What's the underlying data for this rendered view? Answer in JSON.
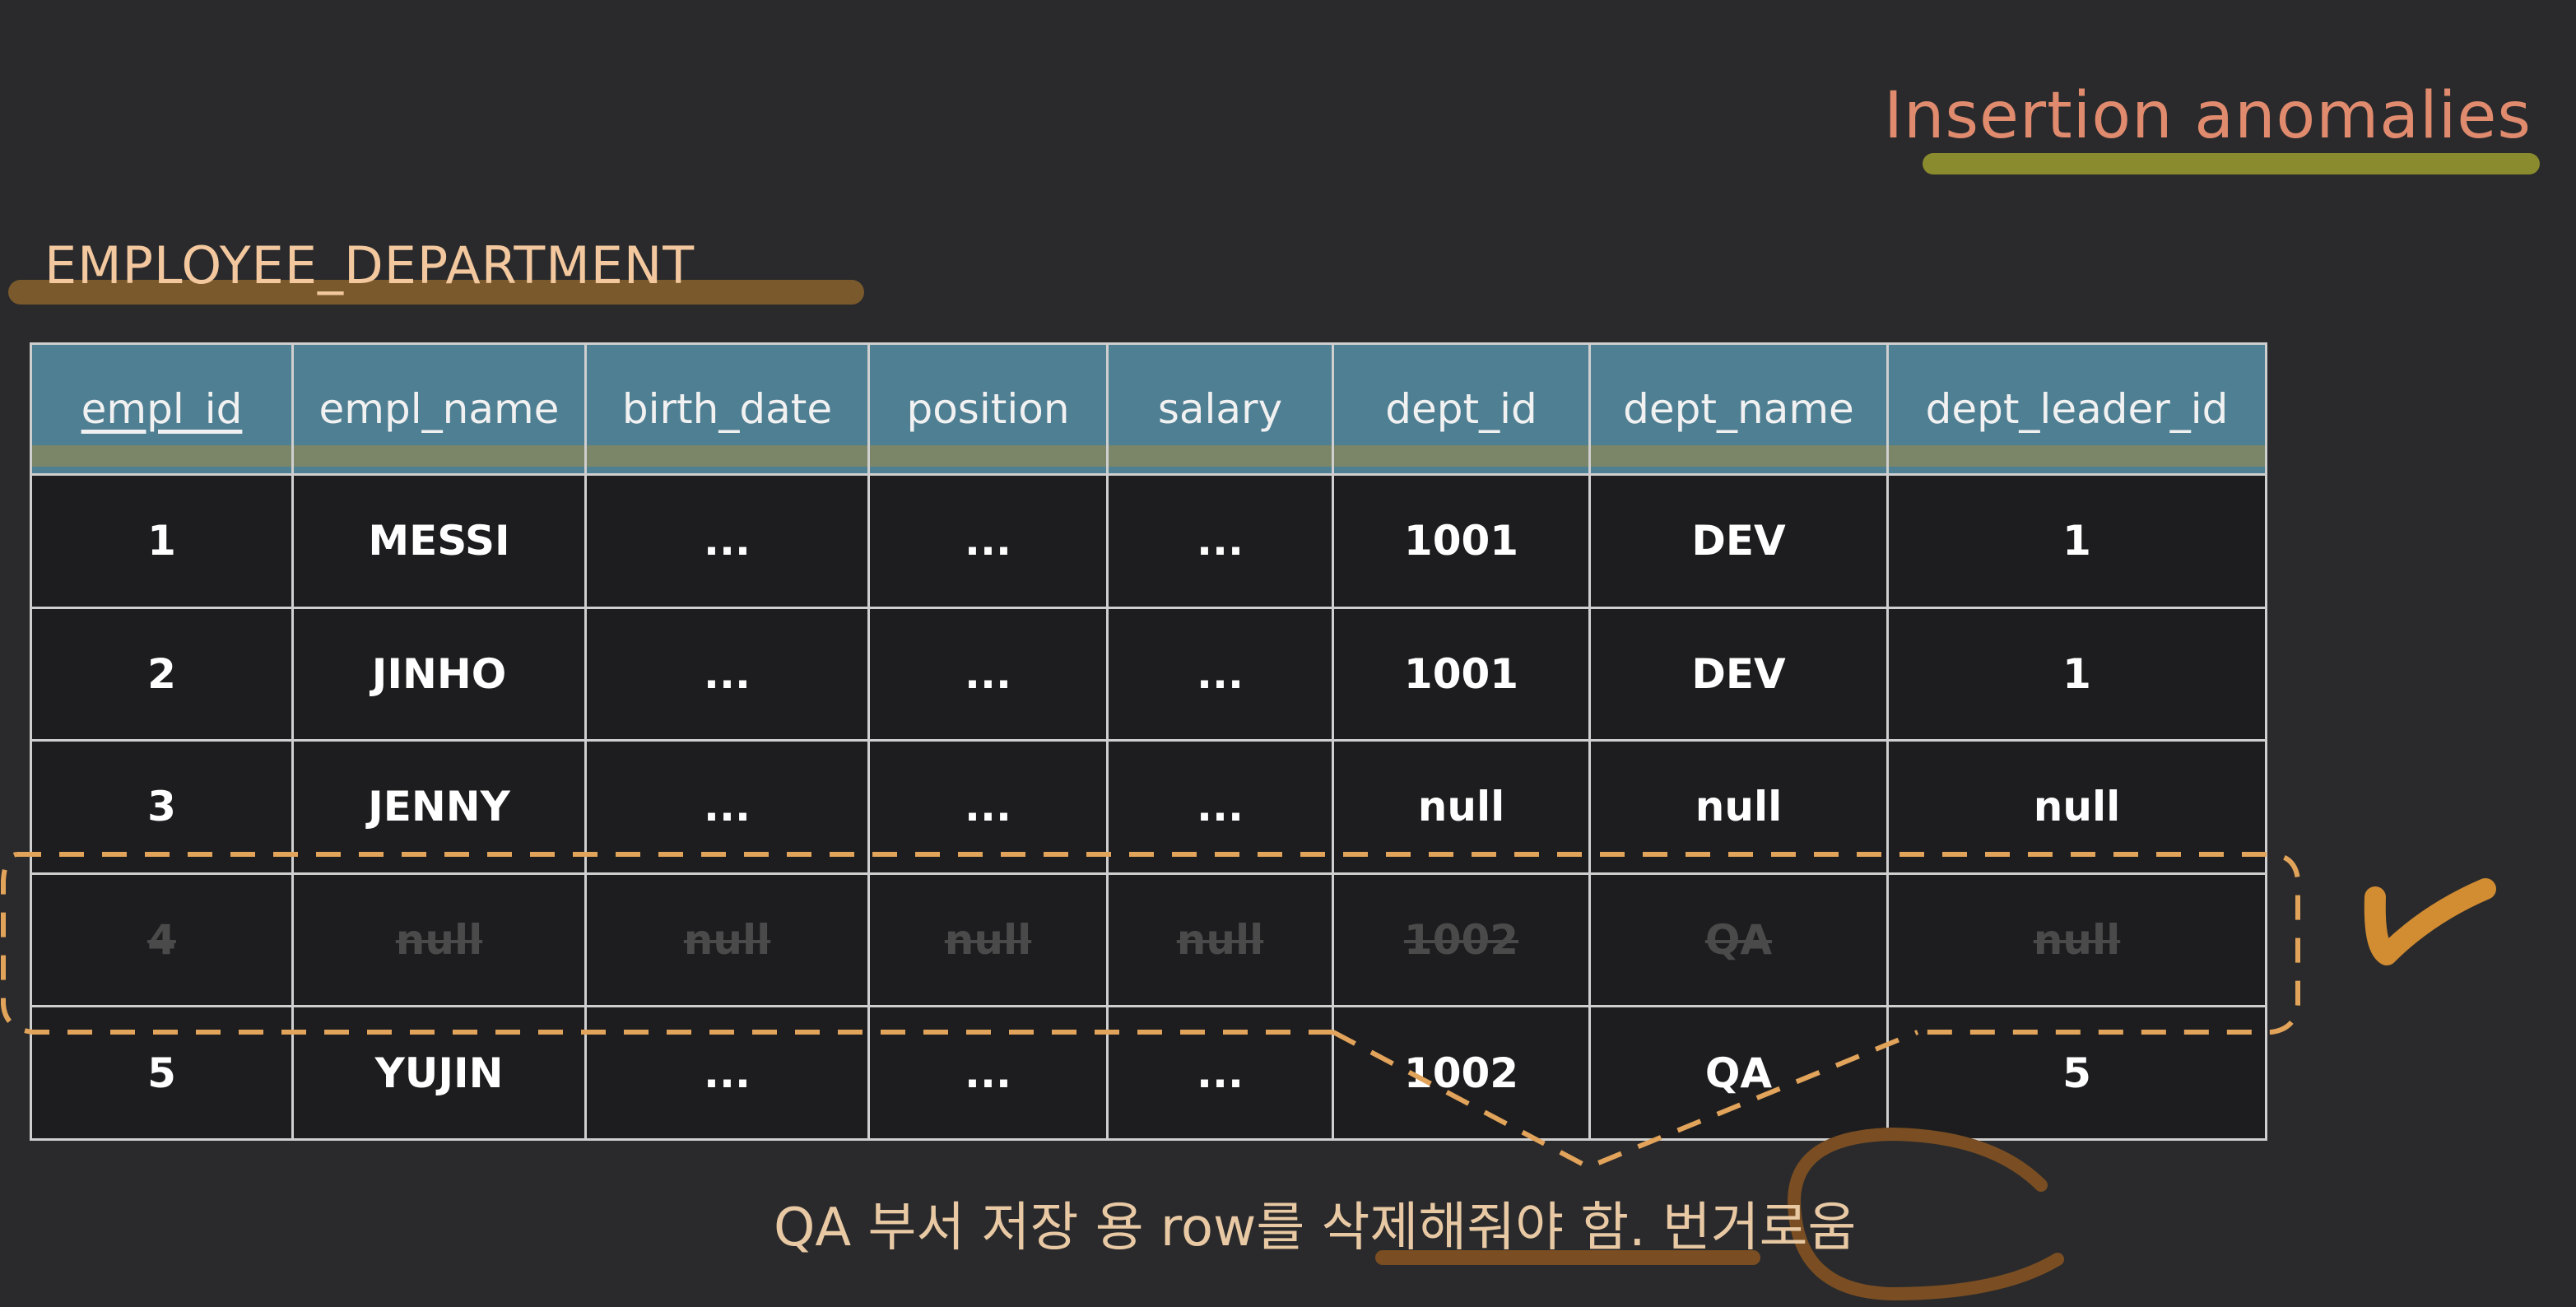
{
  "title": "Insertion anomalies",
  "table_name": "EMPLOYEE_DEPARTMENT",
  "columns": [
    "empl_id",
    "empl_name",
    "birth_date",
    "position",
    "salary",
    "dept_id",
    "dept_name",
    "dept_leader_id"
  ],
  "rows": [
    [
      "1",
      "MESSI",
      "...",
      "...",
      "...",
      "1001",
      "DEV",
      "1"
    ],
    [
      "2",
      "JINHO",
      "...",
      "...",
      "...",
      "1001",
      "DEV",
      "1"
    ],
    [
      "3",
      "JENNY",
      "...",
      "...",
      "...",
      "null",
      "null",
      "null"
    ],
    [
      "4",
      "null",
      "null",
      "null",
      "null",
      "1002",
      "QA",
      "null"
    ],
    [
      "5",
      "YUJIN",
      "...",
      "...",
      "...",
      "1002",
      "QA",
      "5"
    ]
  ],
  "note": "QA 부서 저장 용 row를 삭제해줘야 함.  번거로움",
  "colors": {
    "background": "#2a2a2c",
    "header": "#4f7f93",
    "title": "#e08a6e",
    "table_name": "#f3c89e",
    "annotation": "#e2a35a"
  }
}
